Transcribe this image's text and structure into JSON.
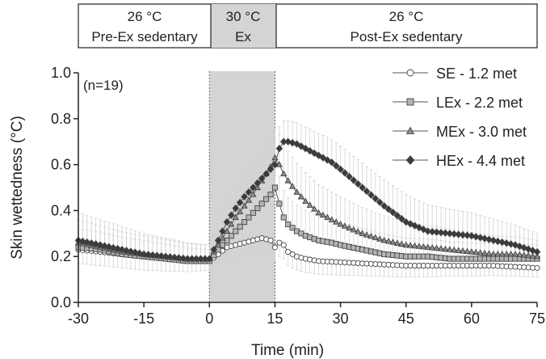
{
  "phases": [
    {
      "temp": "26 °C",
      "label": "Pre-Ex sedentary",
      "from": -30,
      "to": 0
    },
    {
      "temp": "30 °C",
      "label": "Ex",
      "from": 0,
      "to": 15
    },
    {
      "temp": "26 °C",
      "label": "Post-Ex sedentary",
      "from": 15,
      "to": 75
    }
  ],
  "colors": {
    "axis": "#222222",
    "shade": "#d4d4d4",
    "error_bar": "#d2d2d2",
    "series_SE_fill": "#ffffff",
    "series_LEx_fill": "#b4b4b4",
    "series_MEx_fill": "#8c8c8c",
    "series_HEx_fill": "#3a3a3a",
    "line": "#555555"
  },
  "chart_data": {
    "type": "line",
    "title": "",
    "xlabel": "Time (min)",
    "ylabel": "Skin wettedness (°C)",
    "xlim": [
      -30,
      75
    ],
    "ylim": [
      0,
      1.0
    ],
    "xticks": [
      -30,
      -15,
      0,
      15,
      30,
      45,
      60,
      75
    ],
    "yticks": [
      0.0,
      0.2,
      0.4,
      0.6,
      0.8,
      1.0
    ],
    "ytick_labels": [
      "0.0",
      "0.2",
      "0.4",
      "0.6",
      "0.8",
      "1.0"
    ],
    "annotation": "(n=19)",
    "shaded_region": [
      0,
      15
    ],
    "legend_position": "top-right",
    "grid": false,
    "series": [
      {
        "name": "SE - 1.2 met",
        "marker": "circle",
        "points": [
          [
            -30,
            0.23
          ],
          [
            -25,
            0.22
          ],
          [
            -20,
            0.21
          ],
          [
            -15,
            0.2
          ],
          [
            -10,
            0.19
          ],
          [
            -5,
            0.18
          ],
          [
            0,
            0.18
          ],
          [
            2,
            0.21
          ],
          [
            4,
            0.24
          ],
          [
            6,
            0.25
          ],
          [
            8,
            0.26
          ],
          [
            10,
            0.27
          ],
          [
            12,
            0.28
          ],
          [
            14,
            0.27
          ],
          [
            15,
            0.24
          ],
          [
            16,
            0.26
          ],
          [
            17,
            0.25
          ],
          [
            18,
            0.22
          ],
          [
            20,
            0.2
          ],
          [
            22,
            0.19
          ],
          [
            25,
            0.18
          ],
          [
            30,
            0.175
          ],
          [
            35,
            0.17
          ],
          [
            40,
            0.165
          ],
          [
            45,
            0.16
          ],
          [
            50,
            0.16
          ],
          [
            55,
            0.16
          ],
          [
            60,
            0.16
          ],
          [
            65,
            0.16
          ],
          [
            70,
            0.155
          ],
          [
            75,
            0.15
          ]
        ],
        "err": [
          [
            -30,
            0.06
          ],
          [
            -15,
            0.06
          ],
          [
            0,
            0.04
          ],
          [
            10,
            0.06
          ],
          [
            20,
            0.06
          ],
          [
            45,
            0.05
          ],
          [
            75,
            0.04
          ]
        ]
      },
      {
        "name": "LEx - 2.2 met",
        "marker": "square",
        "points": [
          [
            -30,
            0.24
          ],
          [
            -25,
            0.23
          ],
          [
            -20,
            0.21
          ],
          [
            -15,
            0.2
          ],
          [
            -10,
            0.19
          ],
          [
            -5,
            0.18
          ],
          [
            0,
            0.18
          ],
          [
            2,
            0.23
          ],
          [
            4,
            0.27
          ],
          [
            6,
            0.31
          ],
          [
            8,
            0.35
          ],
          [
            10,
            0.39
          ],
          [
            12,
            0.43
          ],
          [
            14,
            0.47
          ],
          [
            15,
            0.5
          ],
          [
            16,
            0.43
          ],
          [
            17,
            0.37
          ],
          [
            18,
            0.34
          ],
          [
            20,
            0.31
          ],
          [
            22,
            0.29
          ],
          [
            25,
            0.27
          ],
          [
            28,
            0.26
          ],
          [
            30,
            0.25
          ],
          [
            35,
            0.23
          ],
          [
            40,
            0.21
          ],
          [
            45,
            0.2
          ],
          [
            50,
            0.2
          ],
          [
            55,
            0.19
          ],
          [
            60,
            0.19
          ],
          [
            65,
            0.19
          ],
          [
            70,
            0.19
          ],
          [
            75,
            0.19
          ]
        ],
        "err": [
          [
            -30,
            0.08
          ],
          [
            -15,
            0.07
          ],
          [
            0,
            0.05
          ],
          [
            10,
            0.1
          ],
          [
            15,
            0.12
          ],
          [
            30,
            0.1
          ],
          [
            45,
            0.08
          ],
          [
            75,
            0.06
          ]
        ]
      },
      {
        "name": "MEx - 3.0 met",
        "marker": "triangle",
        "points": [
          [
            -30,
            0.26
          ],
          [
            -25,
            0.24
          ],
          [
            -20,
            0.22
          ],
          [
            -15,
            0.21
          ],
          [
            -10,
            0.2
          ],
          [
            -5,
            0.19
          ],
          [
            0,
            0.19
          ],
          [
            2,
            0.25
          ],
          [
            4,
            0.31
          ],
          [
            6,
            0.37
          ],
          [
            8,
            0.42
          ],
          [
            10,
            0.47
          ],
          [
            12,
            0.53
          ],
          [
            14,
            0.59
          ],
          [
            15,
            0.63
          ],
          [
            16,
            0.6
          ],
          [
            17,
            0.56
          ],
          [
            18,
            0.53
          ],
          [
            20,
            0.48
          ],
          [
            22,
            0.44
          ],
          [
            25,
            0.39
          ],
          [
            28,
            0.36
          ],
          [
            30,
            0.34
          ],
          [
            35,
            0.3
          ],
          [
            40,
            0.27
          ],
          [
            45,
            0.25
          ],
          [
            50,
            0.24
          ],
          [
            55,
            0.23
          ],
          [
            60,
            0.22
          ],
          [
            65,
            0.21
          ],
          [
            70,
            0.21
          ],
          [
            75,
            0.2
          ]
        ],
        "err": [
          [
            -30,
            0.1
          ],
          [
            -15,
            0.08
          ],
          [
            0,
            0.06
          ],
          [
            10,
            0.12
          ],
          [
            15,
            0.13
          ],
          [
            30,
            0.12
          ],
          [
            45,
            0.1
          ],
          [
            75,
            0.07
          ]
        ]
      },
      {
        "name": "HEx - 4.4 met",
        "marker": "diamond",
        "points": [
          [
            -30,
            0.27
          ],
          [
            -25,
            0.25
          ],
          [
            -20,
            0.23
          ],
          [
            -15,
            0.21
          ],
          [
            -10,
            0.2
          ],
          [
            -5,
            0.19
          ],
          [
            0,
            0.19
          ],
          [
            2,
            0.27
          ],
          [
            4,
            0.35
          ],
          [
            6,
            0.41
          ],
          [
            8,
            0.46
          ],
          [
            10,
            0.5
          ],
          [
            12,
            0.54
          ],
          [
            14,
            0.58
          ],
          [
            15,
            0.6
          ],
          [
            16,
            0.67
          ],
          [
            17,
            0.7
          ],
          [
            18,
            0.7
          ],
          [
            20,
            0.69
          ],
          [
            22,
            0.67
          ],
          [
            25,
            0.64
          ],
          [
            28,
            0.61
          ],
          [
            30,
            0.58
          ],
          [
            35,
            0.5
          ],
          [
            40,
            0.42
          ],
          [
            45,
            0.35
          ],
          [
            50,
            0.31
          ],
          [
            55,
            0.3
          ],
          [
            60,
            0.29
          ],
          [
            65,
            0.27
          ],
          [
            70,
            0.25
          ],
          [
            75,
            0.22
          ]
        ],
        "err": [
          [
            -30,
            0.12
          ],
          [
            -15,
            0.09
          ],
          [
            0,
            0.06
          ],
          [
            10,
            0.12
          ],
          [
            17,
            0.09
          ],
          [
            30,
            0.1
          ],
          [
            45,
            0.12
          ],
          [
            60,
            0.1
          ],
          [
            75,
            0.08
          ]
        ]
      }
    ]
  }
}
